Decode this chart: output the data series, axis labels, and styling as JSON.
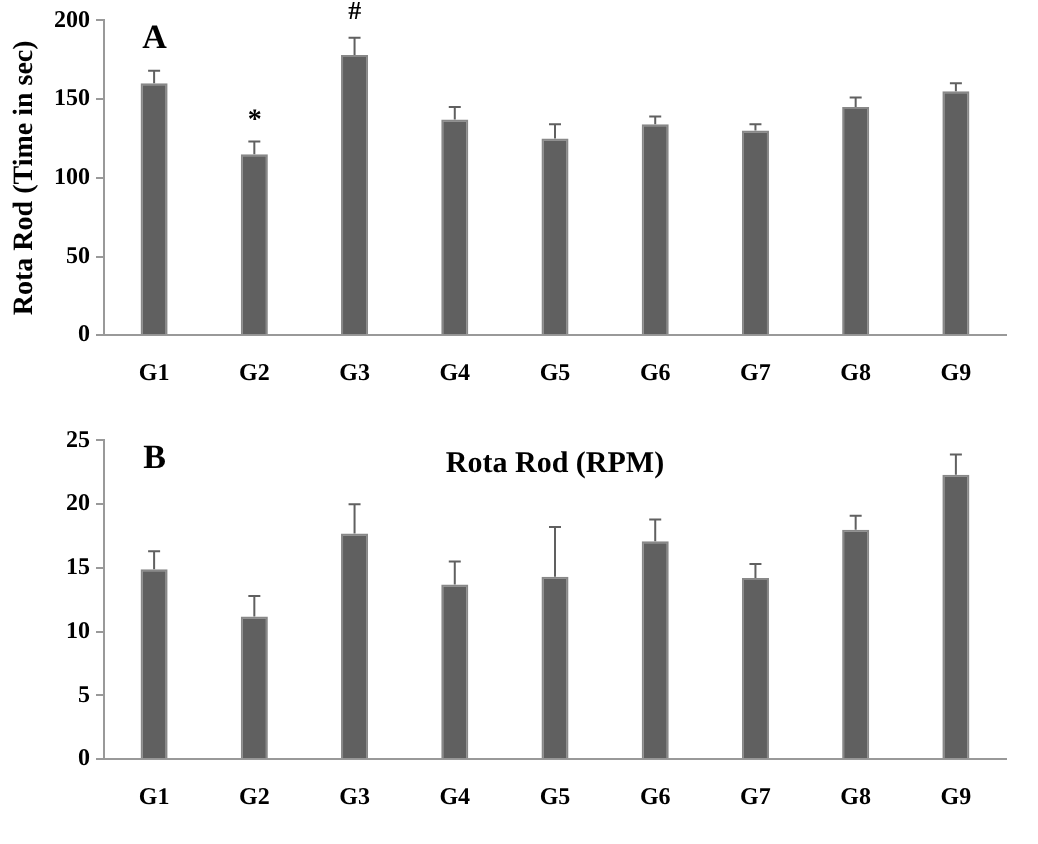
{
  "chart_data": [
    {
      "type": "bar",
      "ylabel": "Rota Rod (Time in sec)",
      "categories": [
        "G1",
        "G2",
        "G3",
        "G4",
        "G5",
        "G6",
        "G7",
        "G8",
        "G9"
      ],
      "color": "#606060",
      "values": [
        160,
        115,
        178,
        137,
        125,
        134,
        130,
        145,
        155
      ],
      "errors": [
        [
          160,
          168
        ],
        [
          115,
          123
        ],
        [
          178,
          189
        ],
        [
          137,
          145
        ],
        [
          125,
          134
        ],
        [
          134,
          139
        ],
        [
          130,
          134
        ],
        [
          145,
          151
        ],
        [
          155,
          160
        ]
      ],
      "ylim": [
        0,
        200
      ],
      "yticks": [
        0,
        50,
        100,
        150,
        200
      ],
      "grid": false,
      "annotations": [
        "A",
        "*",
        "#"
      ]
    },
    {
      "type": "bar",
      "title": "Rota Rod (RPM)",
      "categories": [
        "G1",
        "G2",
        "G3",
        "G4",
        "G5",
        "G6",
        "G7",
        "G8",
        "G9"
      ],
      "color": "#606060",
      "values": [
        14.9,
        11.2,
        17.7,
        13.7,
        14.3,
        17.1,
        14.2,
        18.0,
        22.3
      ],
      "errors": [
        [
          14.9,
          16.3
        ],
        [
          11.2,
          12.8
        ],
        [
          17.7,
          20.0
        ],
        [
          13.7,
          15.5
        ],
        [
          14.3,
          18.2
        ],
        [
          17.1,
          18.8
        ],
        [
          14.2,
          15.3
        ],
        [
          18.0,
          19.1
        ],
        [
          22.3,
          23.9
        ]
      ],
      "ylim": [
        0,
        25
      ],
      "yticks": [
        0,
        5,
        10,
        15,
        20,
        25
      ],
      "grid": false,
      "annotations": [
        "B"
      ]
    }
  ]
}
